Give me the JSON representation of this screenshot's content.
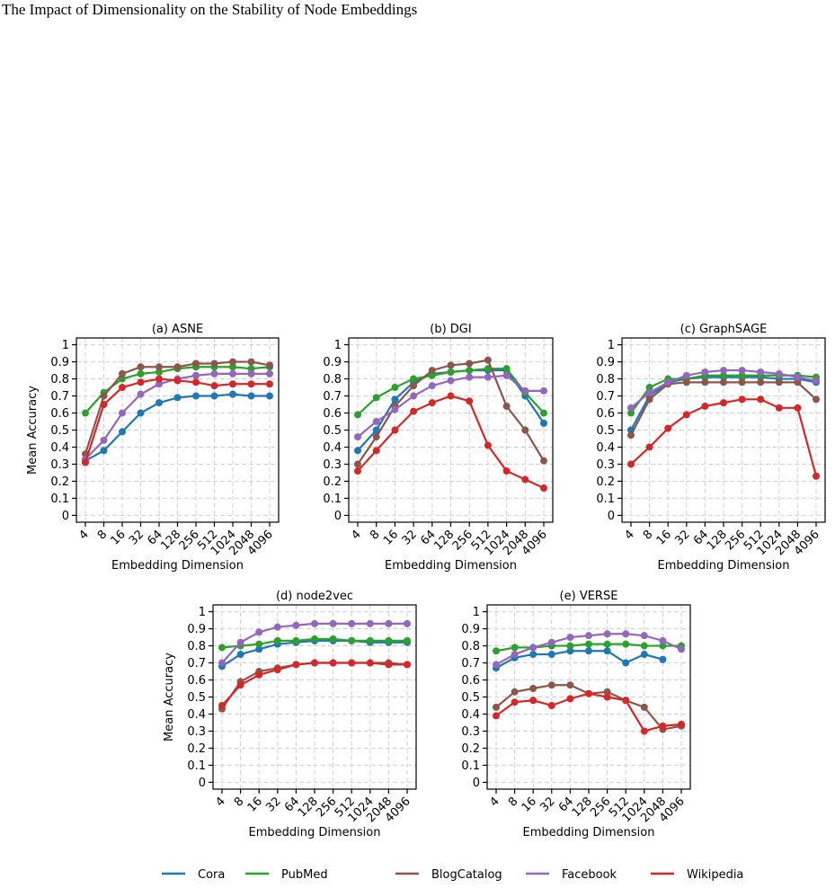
{
  "header": {
    "title": "The Impact of Dimensionality on the Stability of Node Embeddings"
  },
  "chart_data": [
    {
      "type": "line",
      "title": "(a) ASNE",
      "xlabel": "Embedding Dimension",
      "ylabel": "Mean Accuracy",
      "categories": [
        "4",
        "8",
        "16",
        "32",
        "64",
        "128",
        "256",
        "512",
        "1024",
        "2048",
        "4096"
      ],
      "ylim": [
        -0.04,
        1.04
      ],
      "yticks": [
        0,
        0.1,
        0.2,
        0.3,
        0.4,
        0.5,
        0.6,
        0.7,
        0.8,
        0.9,
        1
      ],
      "grid": true,
      "series": [
        {
          "name": "Cora",
          "color": "#1f77b4",
          "values": [
            0.32,
            0.38,
            0.49,
            0.6,
            0.66,
            0.69,
            0.7,
            0.7,
            0.71,
            0.7,
            0.7
          ]
        },
        {
          "name": "PubMed",
          "color": "#2ca02c",
          "values": [
            0.6,
            0.72,
            0.8,
            0.83,
            0.84,
            0.86,
            0.87,
            0.87,
            0.87,
            0.86,
            0.87
          ]
        },
        {
          "name": "BlogCatalog",
          "color": "#8c564b",
          "values": [
            0.36,
            0.7,
            0.83,
            0.87,
            0.87,
            0.87,
            0.89,
            0.89,
            0.9,
            0.9,
            0.88
          ]
        },
        {
          "name": "Facebook",
          "color": "#9467bd",
          "values": [
            0.33,
            0.44,
            0.6,
            0.71,
            0.77,
            0.8,
            0.82,
            0.83,
            0.83,
            0.83,
            0.83
          ]
        },
        {
          "name": "Wikipedia",
          "color": "#d62728",
          "values": [
            0.31,
            0.65,
            0.75,
            0.78,
            0.8,
            0.79,
            0.78,
            0.76,
            0.77,
            0.77,
            0.77
          ]
        }
      ]
    },
    {
      "type": "line",
      "title": "(b) DGI",
      "xlabel": "Embedding Dimension",
      "categories": [
        "4",
        "8",
        "16",
        "32",
        "64",
        "128",
        "256",
        "512",
        "1024",
        "2048",
        "4096"
      ],
      "ylim": [
        -0.04,
        1.04
      ],
      "yticks": [
        0,
        0.1,
        0.2,
        0.3,
        0.4,
        0.5,
        0.6,
        0.7,
        0.8,
        0.9,
        1
      ],
      "grid": true,
      "series": [
        {
          "name": "Cora",
          "color": "#1f77b4",
          "values": [
            0.38,
            0.5,
            0.68,
            0.78,
            0.83,
            0.84,
            0.85,
            0.85,
            0.85,
            0.7,
            0.54
          ]
        },
        {
          "name": "PubMed",
          "color": "#2ca02c",
          "values": [
            0.59,
            0.69,
            0.75,
            0.8,
            0.82,
            0.84,
            0.85,
            0.86,
            0.86,
            0.72,
            0.6
          ]
        },
        {
          "name": "BlogCatalog",
          "color": "#8c564b",
          "values": [
            0.3,
            0.46,
            0.64,
            0.76,
            0.85,
            0.88,
            0.89,
            0.91,
            0.64,
            0.5,
            0.32
          ]
        },
        {
          "name": "Facebook",
          "color": "#9467bd",
          "values": [
            0.46,
            0.55,
            0.62,
            0.7,
            0.76,
            0.79,
            0.81,
            0.81,
            0.82,
            0.73,
            0.73
          ]
        },
        {
          "name": "Wikipedia",
          "color": "#d62728",
          "values": [
            0.26,
            0.38,
            0.5,
            0.61,
            0.66,
            0.7,
            0.67,
            0.41,
            0.26,
            0.21,
            0.16
          ]
        }
      ]
    },
    {
      "type": "line",
      "title": "(c) GraphSAGE",
      "xlabel": "Embedding Dimension",
      "categories": [
        "4",
        "8",
        "16",
        "32",
        "64",
        "128",
        "256",
        "512",
        "1024",
        "2048",
        "4096"
      ],
      "ylim": [
        -0.04,
        1.04
      ],
      "yticks": [
        0,
        0.1,
        0.2,
        0.3,
        0.4,
        0.5,
        0.6,
        0.7,
        0.8,
        0.9,
        1
      ],
      "grid": true,
      "series": [
        {
          "name": "Cora",
          "color": "#1f77b4",
          "values": [
            0.5,
            0.7,
            0.78,
            0.8,
            0.81,
            0.81,
            0.81,
            0.81,
            0.8,
            0.8,
            0.78
          ]
        },
        {
          "name": "PubMed",
          "color": "#2ca02c",
          "values": [
            0.6,
            0.75,
            0.8,
            0.8,
            0.82,
            0.82,
            0.82,
            0.82,
            0.82,
            0.82,
            0.81
          ]
        },
        {
          "name": "BlogCatalog",
          "color": "#8c564b",
          "values": [
            0.47,
            0.68,
            0.77,
            0.78,
            0.78,
            0.78,
            0.78,
            0.78,
            0.78,
            0.78,
            0.68
          ]
        },
        {
          "name": "Facebook",
          "color": "#9467bd",
          "values": [
            0.63,
            0.72,
            0.78,
            0.82,
            0.84,
            0.85,
            0.85,
            0.84,
            0.83,
            0.81,
            0.79
          ]
        },
        {
          "name": "Wikipedia",
          "color": "#d62728",
          "values": [
            0.3,
            0.4,
            0.51,
            0.59,
            0.64,
            0.66,
            0.68,
            0.68,
            0.63,
            0.63,
            0.23
          ]
        }
      ]
    },
    {
      "type": "line",
      "title": "(d) node2vec",
      "xlabel": "Embedding Dimension",
      "ylabel": "Mean Accuracy",
      "categories": [
        "4",
        "8",
        "16",
        "32",
        "64",
        "128",
        "256",
        "512",
        "1024",
        "2048",
        "4096"
      ],
      "ylim": [
        -0.04,
        1.04
      ],
      "yticks": [
        0,
        0.1,
        0.2,
        0.3,
        0.4,
        0.5,
        0.6,
        0.7,
        0.8,
        0.9,
        1
      ],
      "grid": true,
      "series": [
        {
          "name": "Cora",
          "color": "#1f77b4",
          "values": [
            0.68,
            0.75,
            0.78,
            0.81,
            0.82,
            0.83,
            0.83,
            0.83,
            0.82,
            0.82,
            0.82
          ]
        },
        {
          "name": "PubMed",
          "color": "#2ca02c",
          "values": [
            0.79,
            0.8,
            0.81,
            0.83,
            0.83,
            0.84,
            0.84,
            0.83,
            0.83,
            0.83,
            0.83
          ]
        },
        {
          "name": "BlogCatalog",
          "color": "#8c564b",
          "values": [
            0.43,
            0.59,
            0.65,
            0.67,
            0.69,
            0.7,
            0.7,
            0.7,
            0.7,
            0.7,
            0.69
          ]
        },
        {
          "name": "Facebook",
          "color": "#9467bd",
          "values": [
            0.7,
            0.82,
            0.88,
            0.91,
            0.92,
            0.93,
            0.93,
            0.93,
            0.93,
            0.93,
            0.93
          ]
        },
        {
          "name": "Wikipedia",
          "color": "#d62728",
          "values": [
            0.45,
            0.57,
            0.63,
            0.66,
            0.69,
            0.7,
            0.7,
            0.7,
            0.7,
            0.69,
            0.69
          ]
        }
      ]
    },
    {
      "type": "line",
      "title": "(e) VERSE",
      "xlabel": "Embedding Dimension",
      "categories": [
        "4",
        "8",
        "16",
        "32",
        "64",
        "128",
        "256",
        "512",
        "1024",
        "2048",
        "4096"
      ],
      "ylim": [
        -0.04,
        1.04
      ],
      "yticks": [
        0,
        0.1,
        0.2,
        0.3,
        0.4,
        0.5,
        0.6,
        0.7,
        0.8,
        0.9,
        1
      ],
      "grid": true,
      "series": [
        {
          "name": "Cora",
          "color": "#1f77b4",
          "values": [
            0.67,
            0.73,
            0.75,
            0.75,
            0.77,
            0.77,
            0.77,
            0.7,
            0.75,
            0.72,
            null
          ]
        },
        {
          "name": "PubMed",
          "color": "#2ca02c",
          "values": [
            0.77,
            0.79,
            0.79,
            0.8,
            0.8,
            0.81,
            0.81,
            0.81,
            0.8,
            0.8,
            0.8
          ]
        },
        {
          "name": "BlogCatalog",
          "color": "#8c564b",
          "values": [
            0.44,
            0.53,
            0.55,
            0.57,
            0.57,
            0.52,
            0.53,
            0.48,
            0.44,
            0.31,
            0.33
          ]
        },
        {
          "name": "Facebook",
          "color": "#9467bd",
          "values": [
            0.69,
            0.75,
            0.79,
            0.82,
            0.85,
            0.86,
            0.87,
            0.87,
            0.86,
            0.83,
            0.78
          ]
        },
        {
          "name": "Wikipedia",
          "color": "#d62728",
          "values": [
            0.39,
            0.47,
            0.48,
            0.45,
            0.49,
            0.52,
            0.5,
            0.48,
            0.3,
            0.33,
            0.34
          ]
        }
      ]
    }
  ]
}
